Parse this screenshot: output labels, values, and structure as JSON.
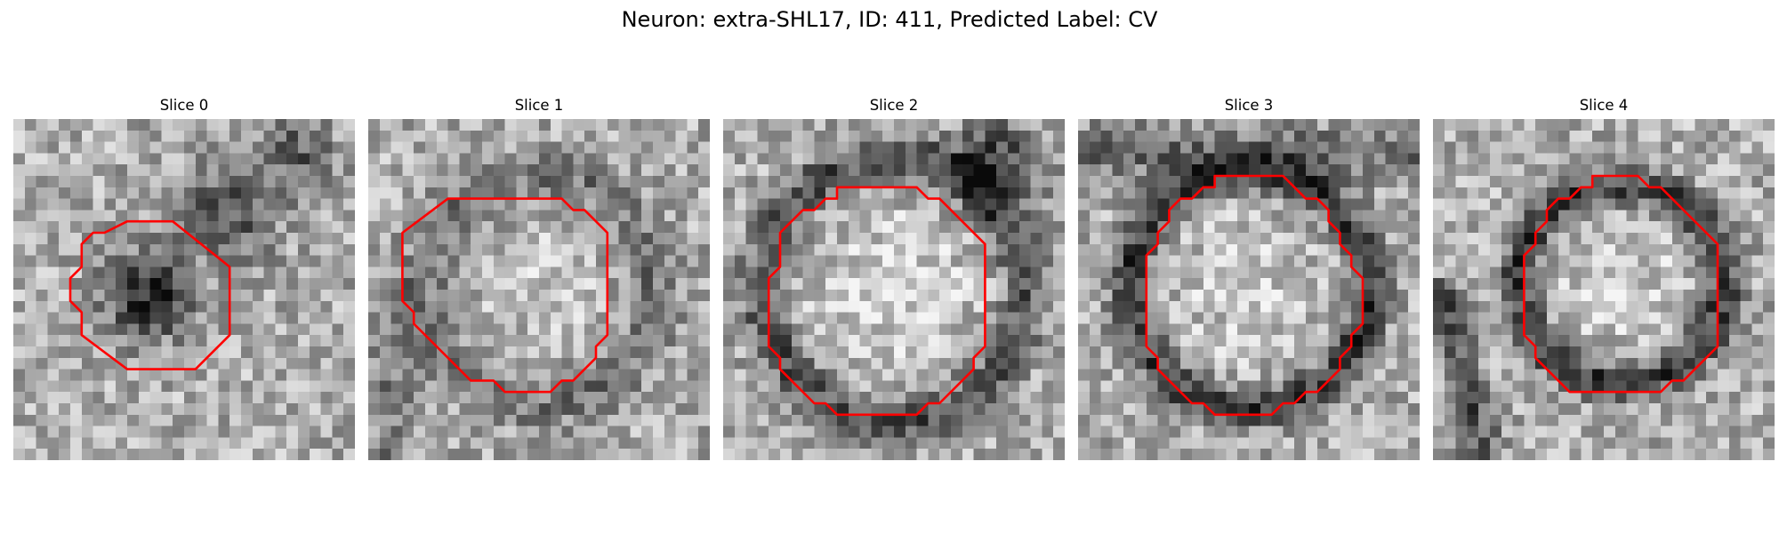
{
  "figure_title": "Neuron: extra-SHL17, ID: 411, Predicted Label: CV",
  "contour_color": "#ff0000",
  "panels": [
    {
      "title": "Slice 0",
      "pattern": "Dark irregular blob slightly left of center inside a smaller red octagonal contour; dark shading toward upper right",
      "contour": [
        [
          10,
          9
        ],
        [
          14,
          9
        ],
        [
          19,
          13
        ],
        [
          19,
          19
        ],
        [
          16,
          22
        ],
        [
          10,
          22
        ],
        [
          6,
          19
        ],
        [
          6,
          17
        ],
        [
          5,
          16
        ],
        [
          5,
          14
        ],
        [
          6,
          13
        ],
        [
          6,
          11
        ],
        [
          7,
          10
        ],
        [
          8,
          10
        ]
      ]
    },
    {
      "title": "Slice 1",
      "pattern": "Light mottled interior ringed by a darker membrane, enclosed by a large red octagonal contour",
      "contour": [
        [
          7,
          7
        ],
        [
          17,
          7
        ],
        [
          18,
          8
        ],
        [
          19,
          8
        ],
        [
          21,
          10
        ],
        [
          21,
          19
        ],
        [
          20,
          20
        ],
        [
          20,
          21
        ],
        [
          18,
          23
        ],
        [
          17,
          23
        ],
        [
          16,
          24
        ],
        [
          12,
          24
        ],
        [
          11,
          23
        ],
        [
          9,
          23
        ],
        [
          4,
          18
        ],
        [
          4,
          17
        ],
        [
          3,
          16
        ],
        [
          3,
          10
        ]
      ]
    },
    {
      "title": "Slice 2",
      "pattern": "Bright round interior with a dark rim, dark shading in the upper right, large red octagonal contour",
      "contour": [
        [
          10,
          6
        ],
        [
          17,
          6
        ],
        [
          18,
          7
        ],
        [
          19,
          7
        ],
        [
          23,
          11
        ],
        [
          23,
          20
        ],
        [
          22,
          21
        ],
        [
          22,
          22
        ],
        [
          19,
          25
        ],
        [
          18,
          25
        ],
        [
          17,
          26
        ],
        [
          10,
          26
        ],
        [
          9,
          25
        ],
        [
          8,
          25
        ],
        [
          5,
          22
        ],
        [
          5,
          21
        ],
        [
          4,
          20
        ],
        [
          4,
          14
        ],
        [
          5,
          13
        ],
        [
          5,
          10
        ],
        [
          7,
          8
        ],
        [
          8,
          8
        ],
        [
          9,
          7
        ],
        [
          10,
          7
        ]
      ]
    },
    {
      "title": "Slice 3",
      "pattern": "Light interior bordered by a thick dark membrane ring that follows the red contour",
      "contour": [
        [
          12,
          5
        ],
        [
          18,
          5
        ],
        [
          20,
          7
        ],
        [
          21,
          7
        ],
        [
          22,
          8
        ],
        [
          22,
          9
        ],
        [
          23,
          10
        ],
        [
          23,
          11
        ],
        [
          24,
          12
        ],
        [
          24,
          13
        ],
        [
          25,
          14
        ],
        [
          25,
          18
        ],
        [
          24,
          19
        ],
        [
          24,
          20
        ],
        [
          23,
          21
        ],
        [
          23,
          22
        ],
        [
          21,
          24
        ],
        [
          20,
          24
        ],
        [
          19,
          25
        ],
        [
          18,
          25
        ],
        [
          17,
          26
        ],
        [
          12,
          26
        ],
        [
          11,
          25
        ],
        [
          10,
          25
        ],
        [
          7,
          22
        ],
        [
          7,
          21
        ],
        [
          6,
          20
        ],
        [
          6,
          12
        ],
        [
          7,
          11
        ],
        [
          7,
          10
        ],
        [
          8,
          9
        ],
        [
          8,
          8
        ],
        [
          9,
          7
        ],
        [
          10,
          7
        ],
        [
          11,
          6
        ],
        [
          12,
          6
        ]
      ]
    },
    {
      "title": "Slice 4",
      "pattern": "Dark membrane ring with a light interior, curved dark band at lower left, smaller red octagonal contour",
      "contour": [
        [
          14,
          5
        ],
        [
          18,
          5
        ],
        [
          19,
          6
        ],
        [
          20,
          6
        ],
        [
          25,
          11
        ],
        [
          25,
          20
        ],
        [
          22,
          23
        ],
        [
          21,
          23
        ],
        [
          20,
          24
        ],
        [
          12,
          24
        ],
        [
          9,
          21
        ],
        [
          9,
          20
        ],
        [
          8,
          19
        ],
        [
          8,
          18
        ],
        [
          8,
          17
        ],
        [
          8,
          14
        ],
        [
          8,
          12
        ],
        [
          9,
          11
        ],
        [
          9,
          10
        ],
        [
          10,
          9
        ],
        [
          10,
          8
        ],
        [
          11,
          7
        ],
        [
          12,
          7
        ],
        [
          13,
          6
        ],
        [
          14,
          6
        ]
      ]
    }
  ]
}
